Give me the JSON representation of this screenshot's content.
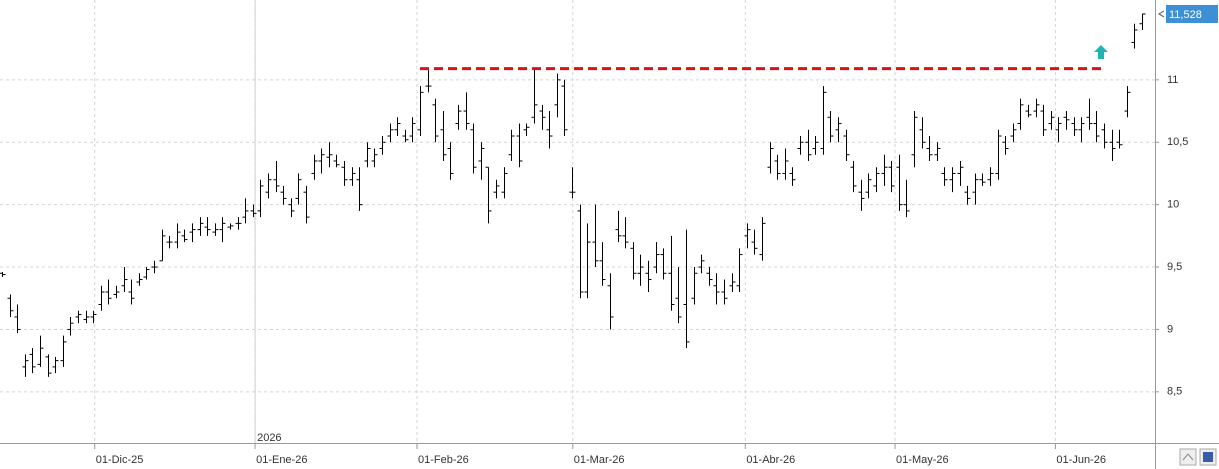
{
  "chart_data": {
    "type": "ohlc",
    "ylim": [
      8.09,
      11.64
    ],
    "yticks": [
      {
        "value": 8.5,
        "label": "8,5"
      },
      9,
      {
        "value": 9.5,
        "label": "9,5"
      },
      10,
      {
        "value": 10.5,
        "label": "10,5"
      },
      11
    ],
    "xlim": [
      -0.26,
      151.7
    ],
    "xticks": [
      {
        "value": 12.2,
        "label": "01-Dic-25"
      },
      {
        "value": 33.3,
        "label": "01-Ene-26"
      },
      {
        "value": 54.6,
        "label": "01-Feb-26"
      },
      {
        "value": 75.1,
        "label": "01-Mar-26"
      },
      {
        "value": 97.8,
        "label": "01-Abr-26"
      },
      {
        "value": 117.5,
        "label": "01-May-26"
      },
      {
        "value": 138.6,
        "label": "01-Jun-26"
      }
    ],
    "year_marker": {
      "label": "2026",
      "x": 33.3
    },
    "grid": true,
    "color": "#000000",
    "resistance": {
      "value": 11.09,
      "x": [
        55,
        145
      ],
      "color": "#e01010"
    },
    "last_price": {
      "value": 11.528,
      "label": "11,528",
      "color": "#3d8fd6"
    },
    "ohlc": [
      [
        9.45,
        9.46,
        9.42,
        9.44
      ],
      [
        9.25,
        9.28,
        9.1,
        9.15
      ],
      [
        9.1,
        9.2,
        8.97,
        9.0
      ],
      [
        8.7,
        8.8,
        8.62,
        8.75
      ],
      [
        8.8,
        8.85,
        8.65,
        8.7
      ],
      [
        8.72,
        8.95,
        8.7,
        8.85
      ],
      [
        8.78,
        8.8,
        8.62,
        8.65
      ],
      [
        8.7,
        8.78,
        8.65,
        8.75
      ],
      [
        8.75,
        8.95,
        8.7,
        8.9
      ],
      [
        9.0,
        9.1,
        8.95,
        9.05
      ],
      [
        9.1,
        9.15,
        9.05,
        9.12
      ],
      [
        9.08,
        9.15,
        9.05,
        9.1
      ],
      [
        9.1,
        9.15,
        9.05,
        9.12
      ],
      [
        9.2,
        9.35,
        9.15,
        9.3
      ],
      [
        9.3,
        9.4,
        9.2,
        9.25
      ],
      [
        9.28,
        9.35,
        9.25,
        9.3
      ],
      [
        9.35,
        9.5,
        9.3,
        9.4
      ],
      [
        9.3,
        9.4,
        9.2,
        9.25
      ],
      [
        9.38,
        9.45,
        9.35,
        9.4
      ],
      [
        9.42,
        9.5,
        9.4,
        9.48
      ],
      [
        9.5,
        9.55,
        9.45,
        9.5
      ],
      [
        9.55,
        9.8,
        9.55,
        9.75
      ],
      [
        9.7,
        9.75,
        9.65,
        9.7
      ],
      [
        9.7,
        9.85,
        9.65,
        9.78
      ],
      [
        9.75,
        9.8,
        9.7,
        9.72
      ],
      [
        9.78,
        9.85,
        9.7,
        9.8
      ],
      [
        9.8,
        9.9,
        9.75,
        9.85
      ],
      [
        9.82,
        9.9,
        9.75,
        9.8
      ],
      [
        9.78,
        9.85,
        9.75,
        9.8
      ],
      [
        9.8,
        9.9,
        9.7,
        9.85
      ],
      [
        9.82,
        9.85,
        9.8,
        9.83
      ],
      [
        9.85,
        9.9,
        9.8,
        9.85
      ],
      [
        9.9,
        10.05,
        9.85,
        9.95
      ],
      [
        9.95,
        10.0,
        9.9,
        9.93
      ],
      [
        9.95,
        10.2,
        9.9,
        10.15
      ],
      [
        10.1,
        10.25,
        10.05,
        10.2
      ],
      [
        10.2,
        10.35,
        10.1,
        10.15
      ],
      [
        10.1,
        10.15,
        10.0,
        10.05
      ],
      [
        10.0,
        10.05,
        9.9,
        9.95
      ],
      [
        10.05,
        10.25,
        10.0,
        10.2
      ],
      [
        10.1,
        10.15,
        9.85,
        9.9
      ],
      [
        10.25,
        10.4,
        10.2,
        10.35
      ],
      [
        10.35,
        10.45,
        10.25,
        10.4
      ],
      [
        10.38,
        10.5,
        10.3,
        10.4
      ],
      [
        10.35,
        10.4,
        10.3,
        10.32
      ],
      [
        10.3,
        10.35,
        10.15,
        10.2
      ],
      [
        10.2,
        10.3,
        10.15,
        10.25
      ],
      [
        10.2,
        10.3,
        9.95,
        10.0
      ],
      [
        10.35,
        10.5,
        10.3,
        10.45
      ],
      [
        10.35,
        10.45,
        10.3,
        10.4
      ],
      [
        10.45,
        10.55,
        10.4,
        10.5
      ],
      [
        10.55,
        10.65,
        10.5,
        10.6
      ],
      [
        10.6,
        10.7,
        10.55,
        10.65
      ],
      [
        10.55,
        10.6,
        10.5,
        10.52
      ],
      [
        10.55,
        10.7,
        10.5,
        10.65
      ],
      [
        10.6,
        10.95,
        10.55,
        10.9
      ],
      [
        10.95,
        11.1,
        10.9,
        10.95
      ],
      [
        10.8,
        10.85,
        10.5,
        10.55
      ],
      [
        10.6,
        10.75,
        10.35,
        10.4
      ],
      [
        10.45,
        10.5,
        10.2,
        10.25
      ],
      [
        10.65,
        10.8,
        10.6,
        10.75
      ],
      [
        10.75,
        10.9,
        10.6,
        10.65
      ],
      [
        10.6,
        10.65,
        10.25,
        10.3
      ],
      [
        10.35,
        10.5,
        10.2,
        10.45
      ],
      [
        10.3,
        10.3,
        9.85,
        9.95
      ],
      [
        10.1,
        10.2,
        10.05,
        10.15
      ],
      [
        10.1,
        10.3,
        10.05,
        10.25
      ],
      [
        10.4,
        10.6,
        10.35,
        10.55
      ],
      [
        10.55,
        10.65,
        10.3,
        10.35
      ],
      [
        10.6,
        10.65,
        10.55,
        10.62
      ],
      [
        10.7,
        11.1,
        10.65,
        10.8
      ],
      [
        10.75,
        10.8,
        10.6,
        10.7
      ],
      [
        10.6,
        10.75,
        10.45,
        10.55
      ],
      [
        10.8,
        11.05,
        10.7,
        11.0
      ],
      [
        10.95,
        11.0,
        10.55,
        10.6
      ],
      [
        10.1,
        10.3,
        10.05,
        10.1
      ],
      [
        9.95,
        10.0,
        9.25,
        9.3
      ],
      [
        9.3,
        9.85,
        9.25,
        9.7
      ],
      [
        9.7,
        10.0,
        9.5,
        9.55
      ],
      [
        9.55,
        9.7,
        9.35,
        9.4
      ],
      [
        9.35,
        9.45,
        9.0,
        9.1
      ],
      [
        9.8,
        9.95,
        9.7,
        9.75
      ],
      [
        9.75,
        9.9,
        9.65,
        9.7
      ],
      [
        9.65,
        9.7,
        9.4,
        9.45
      ],
      [
        9.45,
        9.6,
        9.35,
        9.5
      ],
      [
        9.45,
        9.55,
        9.3,
        9.4
      ],
      [
        9.5,
        9.7,
        9.45,
        9.6
      ],
      [
        9.6,
        9.65,
        9.4,
        9.45
      ],
      [
        9.45,
        9.75,
        9.15,
        9.2
      ],
      [
        9.25,
        9.5,
        9.05,
        9.1
      ],
      [
        9.2,
        9.8,
        8.85,
        8.9
      ],
      [
        9.25,
        9.5,
        9.2,
        9.45
      ],
      [
        9.5,
        9.6,
        9.45,
        9.55
      ],
      [
        9.45,
        9.5,
        9.35,
        9.4
      ],
      [
        9.35,
        9.45,
        9.2,
        9.3
      ],
      [
        9.3,
        9.4,
        9.2,
        9.25
      ],
      [
        9.35,
        9.45,
        9.3,
        9.38
      ],
      [
        9.35,
        9.65,
        9.3,
        9.6
      ],
      [
        9.75,
        9.85,
        9.65,
        9.8
      ],
      [
        9.7,
        9.8,
        9.6,
        9.65
      ],
      [
        9.6,
        9.9,
        9.55,
        9.85
      ],
      [
        10.3,
        10.5,
        10.25,
        10.45
      ],
      [
        10.35,
        10.4,
        10.2,
        10.25
      ],
      [
        10.25,
        10.45,
        10.2,
        10.35
      ],
      [
        10.25,
        10.3,
        10.15,
        10.2
      ],
      [
        10.45,
        10.55,
        10.4,
        10.5
      ],
      [
        10.5,
        10.6,
        10.35,
        10.4
      ],
      [
        10.45,
        10.55,
        10.4,
        10.5
      ],
      [
        10.45,
        10.95,
        10.4,
        10.9
      ],
      [
        10.7,
        10.75,
        10.5,
        10.55
      ],
      [
        10.6,
        10.7,
        10.5,
        10.65
      ],
      [
        10.55,
        10.6,
        10.35,
        10.4
      ],
      [
        10.3,
        10.35,
        10.1,
        10.15
      ],
      [
        10.1,
        10.2,
        9.95,
        10.05
      ],
      [
        10.1,
        10.25,
        10.05,
        10.2
      ],
      [
        10.15,
        10.3,
        10.1,
        10.25
      ],
      [
        10.25,
        10.4,
        10.15,
        10.3
      ],
      [
        10.3,
        10.35,
        10.1,
        10.15
      ],
      [
        10.3,
        10.4,
        9.95,
        10.0
      ],
      [
        10.0,
        10.2,
        9.9,
        9.95
      ],
      [
        10.4,
        10.75,
        10.3,
        10.7
      ],
      [
        10.6,
        10.7,
        10.45,
        10.5
      ],
      [
        10.45,
        10.55,
        10.35,
        10.4
      ],
      [
        10.4,
        10.5,
        10.35,
        10.45
      ],
      [
        10.25,
        10.3,
        10.15,
        10.2
      ],
      [
        10.2,
        10.3,
        10.1,
        10.25
      ],
      [
        10.25,
        10.35,
        10.15,
        10.3
      ],
      [
        10.1,
        10.15,
        10.0,
        10.05
      ],
      [
        10.1,
        10.25,
        10.0,
        10.2
      ],
      [
        10.2,
        10.25,
        10.15,
        10.18
      ],
      [
        10.2,
        10.3,
        10.15,
        10.25
      ],
      [
        10.25,
        10.6,
        10.2,
        10.55
      ],
      [
        10.5,
        10.55,
        10.4,
        10.45
      ],
      [
        10.55,
        10.65,
        10.5,
        10.6
      ],
      [
        10.65,
        10.85,
        10.6,
        10.8
      ],
      [
        10.75,
        10.8,
        10.7,
        10.72
      ],
      [
        10.75,
        10.85,
        10.7,
        10.8
      ],
      [
        10.75,
        10.8,
        10.55,
        10.6
      ],
      [
        10.65,
        10.75,
        10.6,
        10.7
      ],
      [
        10.6,
        10.7,
        10.5,
        10.65
      ],
      [
        10.7,
        10.75,
        10.6,
        10.68
      ],
      [
        10.65,
        10.7,
        10.55,
        10.6
      ],
      [
        10.6,
        10.7,
        10.5,
        10.65
      ],
      [
        10.7,
        10.85,
        10.6,
        10.65
      ],
      [
        10.65,
        10.75,
        10.5,
        10.55
      ],
      [
        10.6,
        10.65,
        10.45,
        10.5
      ],
      [
        10.5,
        10.6,
        10.35,
        10.45
      ],
      [
        10.5,
        10.6,
        10.45,
        10.48
      ],
      [
        10.75,
        10.95,
        10.7,
        10.9
      ],
      [
        11.3,
        11.45,
        11.25,
        11.4
      ],
      [
        11.45,
        11.53,
        11.4,
        11.528
      ]
    ]
  }
}
